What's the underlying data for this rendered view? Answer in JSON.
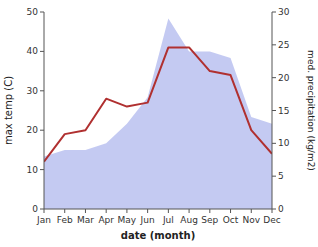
{
  "chart_data": {
    "type": "line",
    "xlabel": "date (month)",
    "ylabel": "max temp (C)",
    "y2label": "med. precipitation (kg/m2)",
    "categories": [
      "Jan",
      "Feb",
      "Mar",
      "Apr",
      "May",
      "Jun",
      "Jul",
      "Aug",
      "Sep",
      "Oct",
      "Nov",
      "Dec"
    ],
    "series": [
      {
        "type": "area",
        "color": "#b0b8ee",
        "axis": "y2",
        "values": [
          8,
          9,
          9,
          10,
          13,
          17,
          29,
          24,
          24,
          23,
          14,
          13
        ]
      },
      {
        "type": "line",
        "color": "#b03030",
        "axis": "y",
        "values": [
          12,
          19,
          20,
          28,
          26,
          27,
          41,
          41,
          35,
          34,
          20,
          14
        ]
      }
    ],
    "ylim": [
      0,
      50
    ],
    "yticks": [
      0,
      10,
      20,
      30,
      40,
      50
    ],
    "y2lim": [
      0,
      30
    ],
    "y2ticks": [
      0,
      5,
      10,
      15,
      20,
      25,
      30
    ]
  }
}
